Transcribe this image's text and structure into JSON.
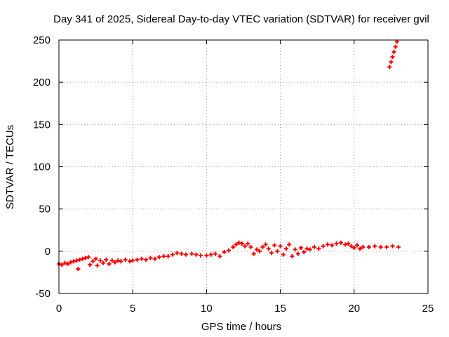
{
  "chart_data": {
    "type": "scatter",
    "title": "Day 341 of 2025, Sidereal Day-to-day VTEC variation (SDTVAR) for receiver gvil",
    "xlabel": "GPS time / hours",
    "ylabel": "SDTVAR / TECUs",
    "xlim": [
      0,
      25
    ],
    "ylim": [
      -50,
      250
    ],
    "xticks": [
      0,
      5,
      10,
      15,
      20,
      25
    ],
    "yticks": [
      -50,
      0,
      50,
      100,
      150,
      200,
      250
    ],
    "grid": true,
    "series": [
      {
        "name": "SDTVAR",
        "color": "#ff0000",
        "marker": "plus",
        "points": [
          [
            0.0,
            -15
          ],
          [
            0.2,
            -16
          ],
          [
            0.4,
            -14
          ],
          [
            0.6,
            -15
          ],
          [
            0.8,
            -13
          ],
          [
            1.0,
            -12
          ],
          [
            1.2,
            -11
          ],
          [
            1.3,
            -21
          ],
          [
            1.4,
            -10
          ],
          [
            1.6,
            -9
          ],
          [
            1.8,
            -8
          ],
          [
            2.0,
            -7
          ],
          [
            2.1,
            -16
          ],
          [
            2.3,
            -12
          ],
          [
            2.5,
            -9
          ],
          [
            2.6,
            -17
          ],
          [
            2.8,
            -11
          ],
          [
            3.0,
            -14
          ],
          [
            3.2,
            -10
          ],
          [
            3.4,
            -15
          ],
          [
            3.6,
            -11
          ],
          [
            3.8,
            -13
          ],
          [
            4.0,
            -11
          ],
          [
            4.2,
            -12
          ],
          [
            4.5,
            -10
          ],
          [
            4.8,
            -12
          ],
          [
            5.0,
            -11
          ],
          [
            5.3,
            -10
          ],
          [
            5.6,
            -9
          ],
          [
            5.9,
            -10
          ],
          [
            6.2,
            -8
          ],
          [
            6.5,
            -9
          ],
          [
            6.8,
            -7
          ],
          [
            7.1,
            -6
          ],
          [
            7.4,
            -6
          ],
          [
            7.7,
            -4
          ],
          [
            8.0,
            -2
          ],
          [
            8.3,
            -3
          ],
          [
            8.6,
            -4
          ],
          [
            9.0,
            -3
          ],
          [
            9.3,
            -4
          ],
          [
            9.6,
            -5
          ],
          [
            10.0,
            -5
          ],
          [
            10.3,
            -4
          ],
          [
            10.6,
            -3
          ],
          [
            10.9,
            -6
          ],
          [
            11.2,
            -1
          ],
          [
            11.5,
            1
          ],
          [
            11.8,
            5
          ],
          [
            12.0,
            8
          ],
          [
            12.2,
            10
          ],
          [
            12.4,
            9
          ],
          [
            12.6,
            6
          ],
          [
            12.8,
            9
          ],
          [
            13.0,
            5
          ],
          [
            13.2,
            -3
          ],
          [
            13.4,
            2
          ],
          [
            13.6,
            0
          ],
          [
            13.8,
            5
          ],
          [
            14.0,
            8
          ],
          [
            14.2,
            3
          ],
          [
            14.4,
            -2
          ],
          [
            14.6,
            7
          ],
          [
            14.8,
            0
          ],
          [
            15.0,
            6
          ],
          [
            15.2,
            -4
          ],
          [
            15.4,
            3
          ],
          [
            15.6,
            8
          ],
          [
            15.8,
            -6
          ],
          [
            16.0,
            2
          ],
          [
            16.2,
            -3
          ],
          [
            16.4,
            4
          ],
          [
            16.6,
            -1
          ],
          [
            16.8,
            3
          ],
          [
            17.0,
            2
          ],
          [
            17.3,
            5
          ],
          [
            17.6,
            3
          ],
          [
            17.9,
            6
          ],
          [
            18.2,
            8
          ],
          [
            18.5,
            7
          ],
          [
            18.8,
            9
          ],
          [
            19.1,
            10
          ],
          [
            19.4,
            8
          ],
          [
            19.6,
            9
          ],
          [
            19.8,
            6
          ],
          [
            20.0,
            4
          ],
          [
            20.2,
            7
          ],
          [
            20.4,
            3
          ],
          [
            20.6,
            5
          ],
          [
            21.0,
            5
          ],
          [
            21.4,
            6
          ],
          [
            21.8,
            5
          ],
          [
            22.2,
            5
          ],
          [
            22.6,
            6
          ],
          [
            23.0,
            5
          ],
          [
            22.4,
            218
          ],
          [
            22.5,
            224
          ],
          [
            22.6,
            230
          ],
          [
            22.7,
            236
          ],
          [
            22.8,
            242
          ],
          [
            22.9,
            248
          ]
        ]
      }
    ]
  }
}
